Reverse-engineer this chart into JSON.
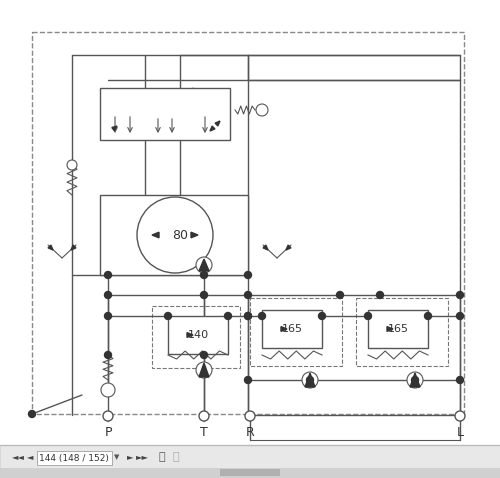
{
  "bg_color": "#ffffff",
  "diagram_bg": "#ffffff",
  "line_color": "#555555",
  "toolbar_bg": "#e0e0e0",
  "toolbar_text": "144 (148 / 152)",
  "bottom_labels": [
    "P",
    "T",
    "R",
    "L"
  ],
  "figsize": [
    5.0,
    4.78
  ],
  "dpi": 100
}
